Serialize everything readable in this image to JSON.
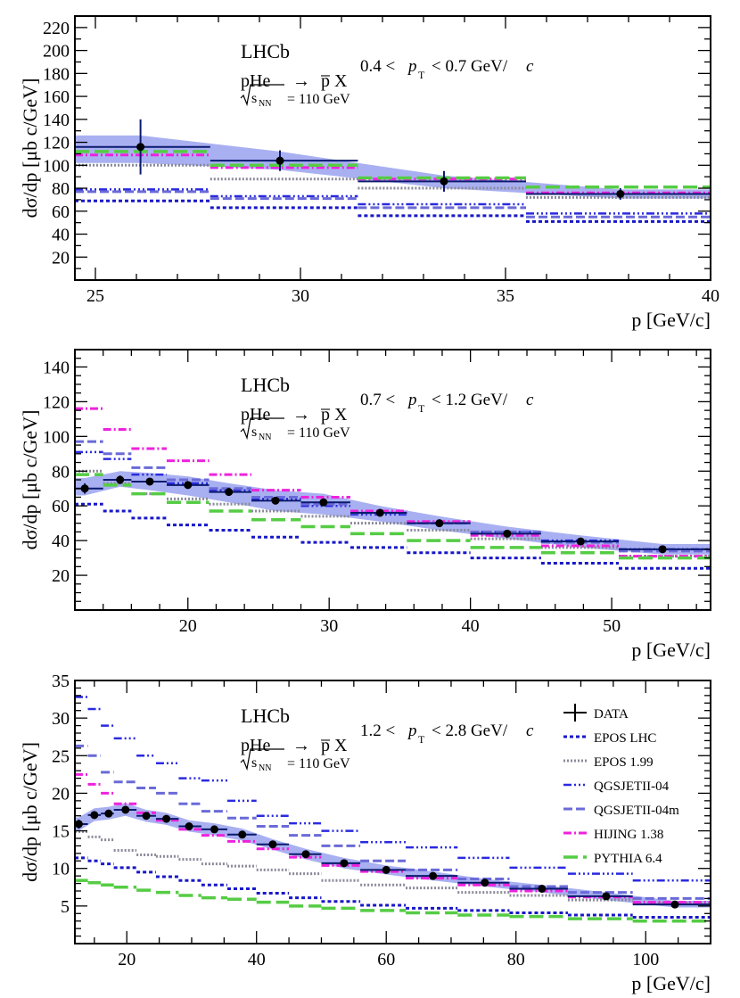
{
  "colors": {
    "data": "#0a1a6e",
    "band": "#8c95ec",
    "epos_lhc": "#1818c8",
    "epos_199": "#8a8a9a",
    "qgsjet": "#2a2ae0",
    "qgsjet_m": "#6a6ad8",
    "hijing": "#ee22dd",
    "pythia": "#55cc44"
  },
  "chart_data": [
    {
      "type": "line",
      "experiment": "LHCb",
      "process_lhs": "pHe",
      "process_arrow": "→",
      "process_rhs": "p̅ X",
      "energy": "√s_NN = 110 GeV",
      "sqrt_label": "s",
      "sqrt_sub": "NN",
      "energy_value": "= 110 GeV",
      "pt_low": "0.4 <",
      "pt_var": "p",
      "pt_sub": "T",
      "pt_high": "< 0.7 GeV/",
      "pt_c": "c",
      "ylabel": "dσ/dp [μb c/GeV]",
      "xlabel": "p [GeV/c]",
      "xlim": [
        24.5,
        40
      ],
      "ylim": [
        0,
        230
      ],
      "xticks": [
        25,
        30,
        35,
        40
      ],
      "yticks": [
        20,
        40,
        60,
        80,
        100,
        120,
        140,
        160,
        180,
        200,
        220
      ],
      "y_minor": 10,
      "x_minor": 1,
      "bin_edges": [
        24.5,
        27.8,
        31.4,
        35.5,
        40
      ],
      "data": {
        "x": [
          26.1,
          29.5,
          33.5,
          37.8
        ],
        "y": [
          116,
          104,
          86,
          75
        ],
        "yerr": [
          24,
          9,
          9,
          5
        ],
        "band_low": [
          102,
          96,
          80,
          71
        ],
        "band_high": [
          126,
          112,
          91,
          79
        ]
      },
      "series": [
        {
          "name": "EPOS LHC",
          "key": "epos_lhc",
          "values": [
            69,
            63,
            56,
            51
          ]
        },
        {
          "name": "EPOS 1.99",
          "key": "epos_199",
          "values": [
            100,
            88,
            80,
            72
          ]
        },
        {
          "name": "QGSJETII-04",
          "key": "qgsjet",
          "values": [
            79,
            73,
            66,
            58
          ]
        },
        {
          "name": "QGSJETII-04m",
          "key": "qgsjet_m",
          "values": [
            77,
            71,
            63,
            55
          ]
        },
        {
          "name": "HIJING 1.38",
          "key": "hijing",
          "values": [
            109,
            98,
            88,
            76
          ]
        },
        {
          "name": "PYTHIA 6.4",
          "key": "pythia",
          "values": [
            112,
            100,
            89,
            81
          ]
        }
      ]
    },
    {
      "type": "line",
      "experiment": "LHCb",
      "process_lhs": "pHe",
      "process_arrow": "→",
      "process_rhs": "p̅ X",
      "energy": "√s_NN = 110 GeV",
      "sqrt_label": "s",
      "sqrt_sub": "NN",
      "energy_value": "= 110 GeV",
      "pt_low": "0.7 <",
      "pt_var": "p",
      "pt_sub": "T",
      "pt_high": "< 1.2 GeV/",
      "pt_c": "c",
      "ylabel": "dσ/dp [μb c/GeV]",
      "xlabel": "p [GeV/c]",
      "xlim": [
        12,
        57
      ],
      "ylim": [
        0,
        150
      ],
      "xticks": [
        20,
        30,
        40,
        50
      ],
      "yticks": [
        20,
        40,
        60,
        80,
        100,
        120,
        140
      ],
      "y_minor": 5,
      "x_minor": 2,
      "bin_edges": [
        12,
        14,
        16,
        18.5,
        21.5,
        24.5,
        28,
        31.5,
        35.5,
        40,
        45,
        50.5,
        57
      ],
      "data": {
        "x": [
          12.7,
          15.2,
          17.3,
          20.0,
          22.9,
          26.2,
          29.6,
          33.6,
          37.8,
          42.6,
          47.8,
          53.6
        ],
        "y": [
          70,
          75,
          74,
          72,
          68,
          63,
          62,
          56,
          50,
          44,
          39.5,
          35
        ],
        "yerr": [
          3,
          2.5,
          2,
          2,
          2,
          2,
          2,
          1.5,
          1.5,
          1.5,
          1.5,
          1.5
        ],
        "band_low": [
          66,
          71,
          69,
          66,
          62,
          57,
          55,
          51,
          46,
          41,
          36,
          32
        ],
        "band_high": [
          76,
          80,
          79,
          77,
          73,
          69,
          67,
          60,
          54,
          48,
          43,
          38
        ]
      },
      "series": [
        {
          "name": "EPOS LHC",
          "key": "epos_lhc",
          "values": [
            61,
            57,
            53,
            49,
            46,
            42,
            39,
            36,
            33,
            30,
            27,
            24
          ]
        },
        {
          "name": "EPOS 1.99",
          "key": "epos_199",
          "values": [
            80,
            73,
            67,
            64,
            61,
            57,
            54,
            50,
            46,
            41,
            36,
            31
          ]
        },
        {
          "name": "QGSJETII-04",
          "key": "qgsjet",
          "values": [
            91,
            87,
            78,
            73,
            69,
            64,
            60,
            55,
            50,
            45,
            40,
            35
          ]
        },
        {
          "name": "QGSJETII-04m",
          "key": "qgsjet_m",
          "values": [
            97,
            90,
            82,
            75,
            70,
            65,
            61,
            56,
            50,
            45,
            39,
            34
          ]
        },
        {
          "name": "HIJING 1.38",
          "key": "hijing",
          "values": [
            116,
            104,
            93,
            86,
            78,
            69,
            65,
            57,
            51,
            43,
            37,
            31
          ]
        },
        {
          "name": "PYTHIA 6.4",
          "key": "pythia",
          "values": [
            78,
            72,
            67,
            62,
            57,
            52,
            48,
            44,
            40,
            36,
            33,
            30
          ]
        }
      ]
    },
    {
      "type": "line",
      "experiment": "LHCb",
      "process_lhs": "pHe",
      "process_arrow": "→",
      "process_rhs": "p̅ X",
      "energy": "√s_NN = 110 GeV",
      "sqrt_label": "s",
      "sqrt_sub": "NN",
      "energy_value": "= 110 GeV",
      "pt_low": "1.2 <",
      "pt_var": "p",
      "pt_sub": "T",
      "pt_high": "< 2.8 GeV/",
      "pt_c": "c",
      "ylabel": "dσ/dp [μb c/GeV]",
      "xlabel": "p [GeV/c]",
      "xlim": [
        12,
        110
      ],
      "ylim": [
        0,
        35
      ],
      "xticks": [
        20,
        40,
        60,
        80,
        100
      ],
      "yticks": [
        5,
        10,
        15,
        20,
        25,
        30,
        35
      ],
      "y_minor": 1,
      "x_minor": 5,
      "bin_edges": [
        12,
        14,
        16,
        18,
        21.5,
        24.5,
        28,
        31.5,
        35.5,
        40,
        45,
        50,
        56,
        63,
        71,
        79,
        88,
        98,
        110
      ],
      "data": {
        "x": [
          12.6,
          15.0,
          17.2,
          19.8,
          23.0,
          26.1,
          29.6,
          33.5,
          37.8,
          42.5,
          47.6,
          53.5,
          60.0,
          67.2,
          75.2,
          84.0,
          93.9,
          104.5
        ],
        "y": [
          15.9,
          17.1,
          17.3,
          17.8,
          17.0,
          16.6,
          15.6,
          15.2,
          14.5,
          13.2,
          11.9,
          10.7,
          9.8,
          9.0,
          8.1,
          7.3,
          6.3,
          5.2
        ],
        "yerr": [
          0.6,
          0.5,
          0.5,
          0.5,
          0.5,
          0.5,
          0.4,
          0.4,
          0.4,
          0.4,
          0.4,
          0.3,
          0.3,
          0.3,
          0.3,
          0.3,
          0.3,
          0.3
        ],
        "band_low": [
          15.0,
          16.3,
          16.5,
          17.0,
          16.2,
          15.8,
          14.9,
          14.4,
          13.7,
          12.5,
          11.2,
          10.0,
          9.2,
          8.4,
          7.6,
          6.8,
          5.8,
          4.8
        ],
        "band_high": [
          16.8,
          18.0,
          18.2,
          18.7,
          17.8,
          17.4,
          16.4,
          16.0,
          15.3,
          13.9,
          12.6,
          11.4,
          10.4,
          9.6,
          8.6,
          7.8,
          6.8,
          5.7
        ]
      },
      "series": [
        {
          "name": "EPOS LHC",
          "key": "epos_lhc",
          "values": [
            11.4,
            11.0,
            10.6,
            10.1,
            9.5,
            8.9,
            8.4,
            7.8,
            7.3,
            6.7,
            6.1,
            5.6,
            5.1,
            4.7,
            4.4,
            4.1,
            3.8,
            3.5
          ]
        },
        {
          "name": "EPOS 1.99",
          "key": "epos_199",
          "values": [
            14.9,
            14.2,
            13.8,
            12.4,
            11.8,
            11.6,
            11.2,
            10.6,
            10.3,
            9.8,
            9.3,
            8.4,
            7.8,
            7.4,
            6.8,
            6.4,
            5.8,
            5.4
          ]
        },
        {
          "name": "QGSJETII-04",
          "key": "qgsjet",
          "values": [
            32.8,
            31.2,
            29.0,
            27.3,
            25.0,
            24.0,
            22.0,
            21.7,
            19.0,
            17.0,
            16.0,
            15.0,
            13.5,
            12.8,
            11.4,
            10.1,
            9.3,
            8.4
          ]
        },
        {
          "name": "QGSJETII-04m",
          "key": "qgsjet_m",
          "values": [
            26.3,
            25.0,
            22.8,
            21.5,
            20.7,
            20.0,
            18.6,
            17.6,
            16.7,
            15.6,
            14.4,
            13.0,
            11.0,
            9.8,
            8.6,
            7.6,
            6.8,
            6.0
          ]
        },
        {
          "name": "HIJING 1.38",
          "key": "hijing",
          "values": [
            22.5,
            21.2,
            20.0,
            18.6,
            17.4,
            16.4,
            15.2,
            14.4,
            13.6,
            12.6,
            11.5,
            10.4,
            9.6,
            8.7,
            7.8,
            7.0,
            6.2,
            5.5
          ]
        },
        {
          "name": "PYTHIA 6.4",
          "key": "pythia",
          "values": [
            8.4,
            8.1,
            7.8,
            7.5,
            7.1,
            6.8,
            6.4,
            6.1,
            5.9,
            5.5,
            5.0,
            4.7,
            4.4,
            4.1,
            3.8,
            3.6,
            3.3,
            3.0
          ]
        }
      ],
      "legend": [
        {
          "label": "DATA",
          "key": "data"
        },
        {
          "label": "EPOS LHC",
          "key": "epos_lhc"
        },
        {
          "label": "EPOS 1.99",
          "key": "epos_199"
        },
        {
          "label": "QGSJETII-04",
          "key": "qgsjet"
        },
        {
          "label": "QGSJETII-04m",
          "key": "qgsjet_m"
        },
        {
          "label": "HIJING 1.38",
          "key": "hijing"
        },
        {
          "label": "PYTHIA 6.4",
          "key": "pythia"
        }
      ]
    }
  ]
}
